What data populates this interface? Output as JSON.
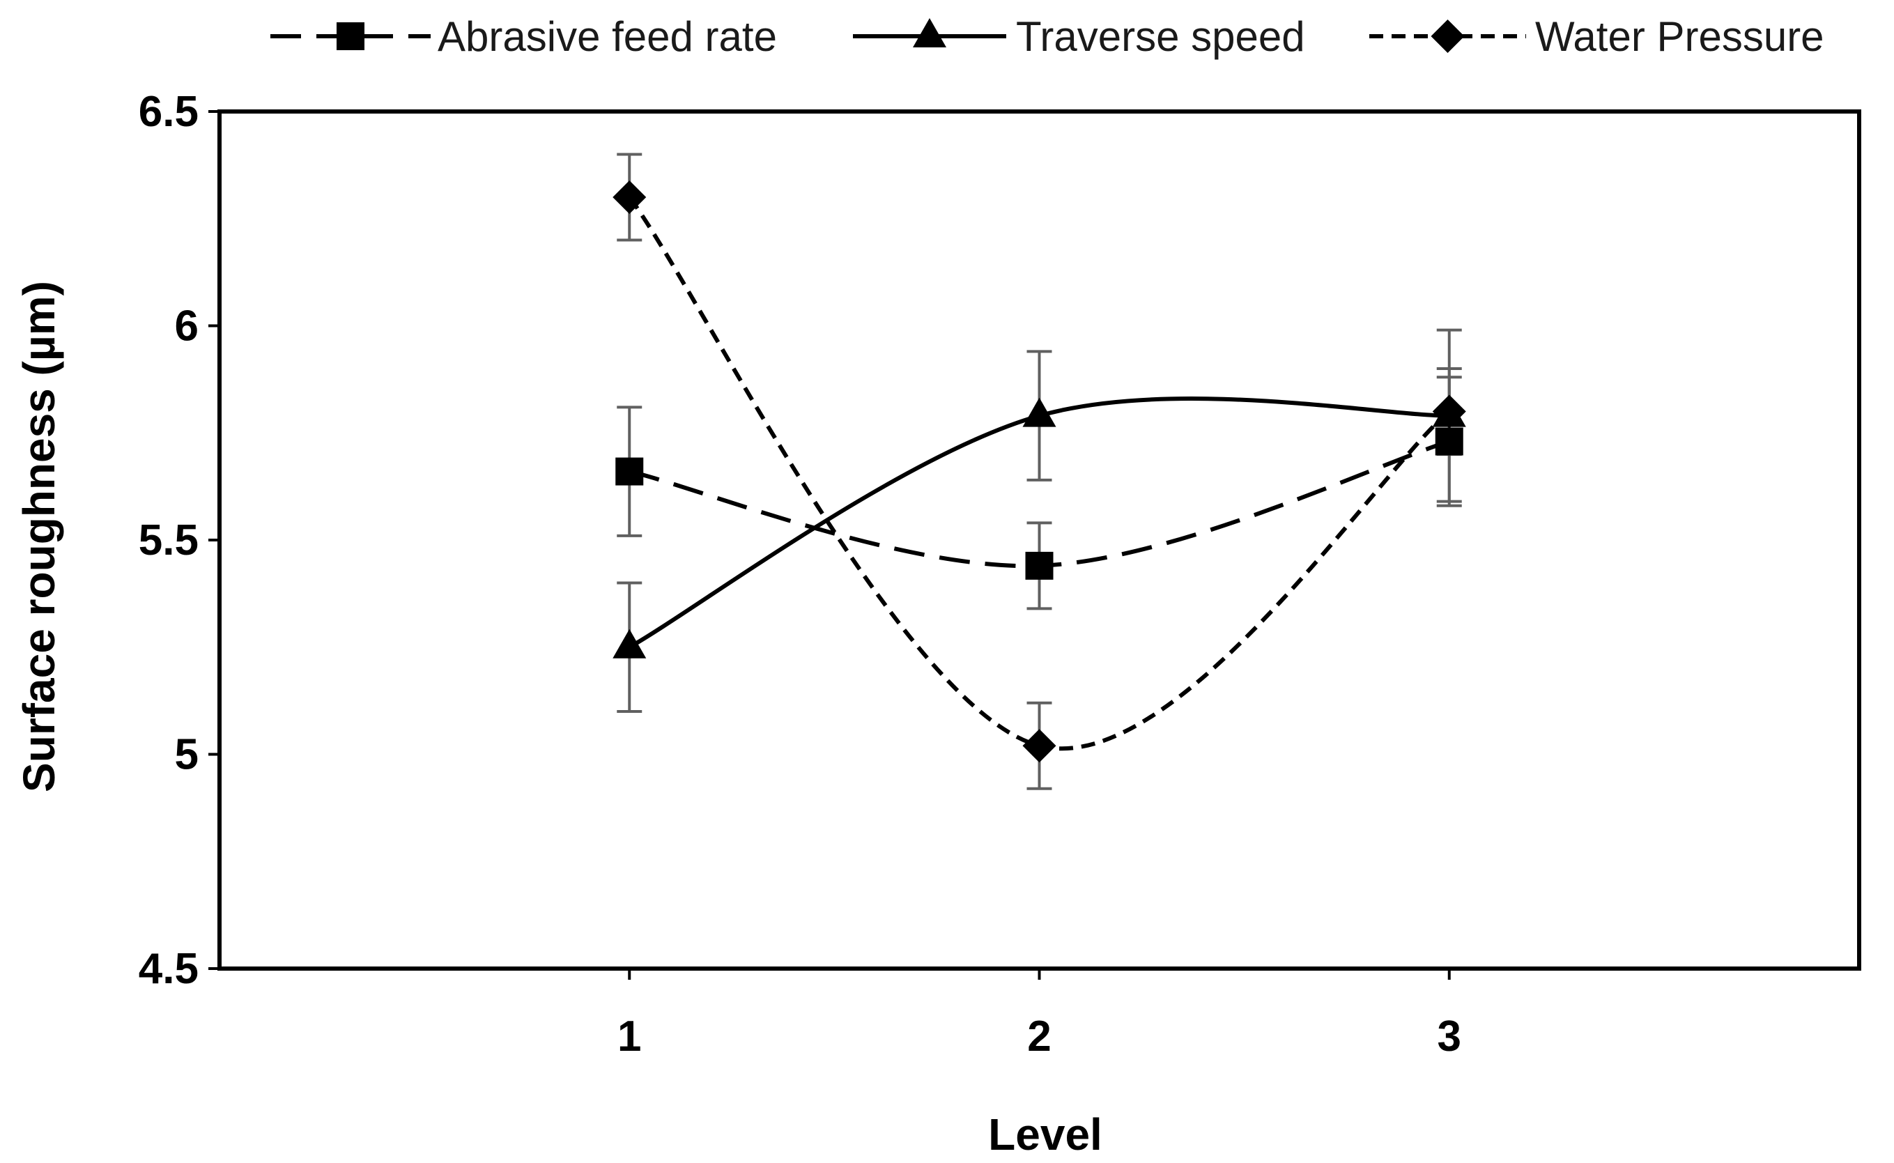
{
  "chart_data": {
    "type": "line",
    "title": "",
    "xlabel": "Level",
    "ylabel": "Surface roughness (µm)",
    "categories": [
      "1",
      "2",
      "3"
    ],
    "x": [
      1,
      2,
      3
    ],
    "xlim": [
      0,
      4
    ],
    "ylim": [
      4.5,
      6.5
    ],
    "yticks": [
      "4.5",
      "5",
      "5.5",
      "6",
      "6.5"
    ],
    "ytick_values": [
      4.5,
      5,
      5.5,
      6,
      6.5
    ],
    "grid": false,
    "legend_position": "top",
    "series": [
      {
        "name": "Abrasive feed rate",
        "marker": "square",
        "line_style": "long-dash",
        "values": [
          5.66,
          5.44,
          5.73
        ],
        "error": [
          0.15,
          0.1,
          0.15
        ]
      },
      {
        "name": "Traverse speed",
        "marker": "triangle",
        "line_style": "solid",
        "values": [
          5.25,
          5.79,
          5.79
        ],
        "error": [
          0.15,
          0.15,
          0.2
        ]
      },
      {
        "name": "Water Pressure",
        "marker": "diamond",
        "line_style": "short-dash",
        "values": [
          6.3,
          5.02,
          5.8
        ],
        "error": [
          0.1,
          0.1,
          0.1
        ]
      }
    ],
    "colors": {
      "line": "#000000",
      "error_bar": "#606060",
      "axis": "#000000"
    }
  }
}
